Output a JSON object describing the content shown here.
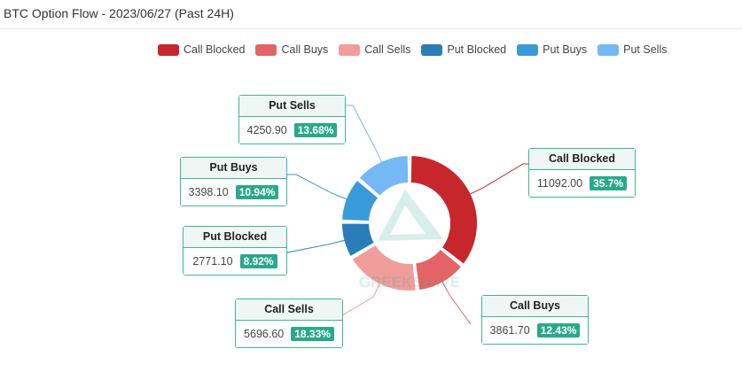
{
  "header": {
    "title": "BTC Option Flow - 2023/06/27 (Past 24H)"
  },
  "chart_data": {
    "type": "pie",
    "variant": "donut",
    "legend_position": "top",
    "slices": [
      {
        "name": "Call Blocked",
        "value": 11092.0,
        "percent": "35.7%",
        "color": "#c7262c"
      },
      {
        "name": "Call Buys",
        "value": 3861.7,
        "percent": "12.43%",
        "color": "#e46466"
      },
      {
        "name": "Call Sells",
        "value": 5696.6,
        "percent": "18.33%",
        "color": "#f09d9c"
      },
      {
        "name": "Put Blocked",
        "value": 2771.1,
        "percent": "8.92%",
        "color": "#2a7db8"
      },
      {
        "name": "Put Buys",
        "value": 3398.1,
        "percent": "10.94%",
        "color": "#3a9ad9"
      },
      {
        "name": "Put Sells",
        "value": 4250.9,
        "percent": "13.68%",
        "color": "#74b8f5"
      }
    ],
    "value_labels": [
      "11092.00",
      "3861.70",
      "5696.60",
      "2771.10",
      "3398.10",
      "4250.90"
    ]
  },
  "watermark": {
    "text": "GREEKS.LIVE",
    "icon": "greeks-live-logo"
  }
}
